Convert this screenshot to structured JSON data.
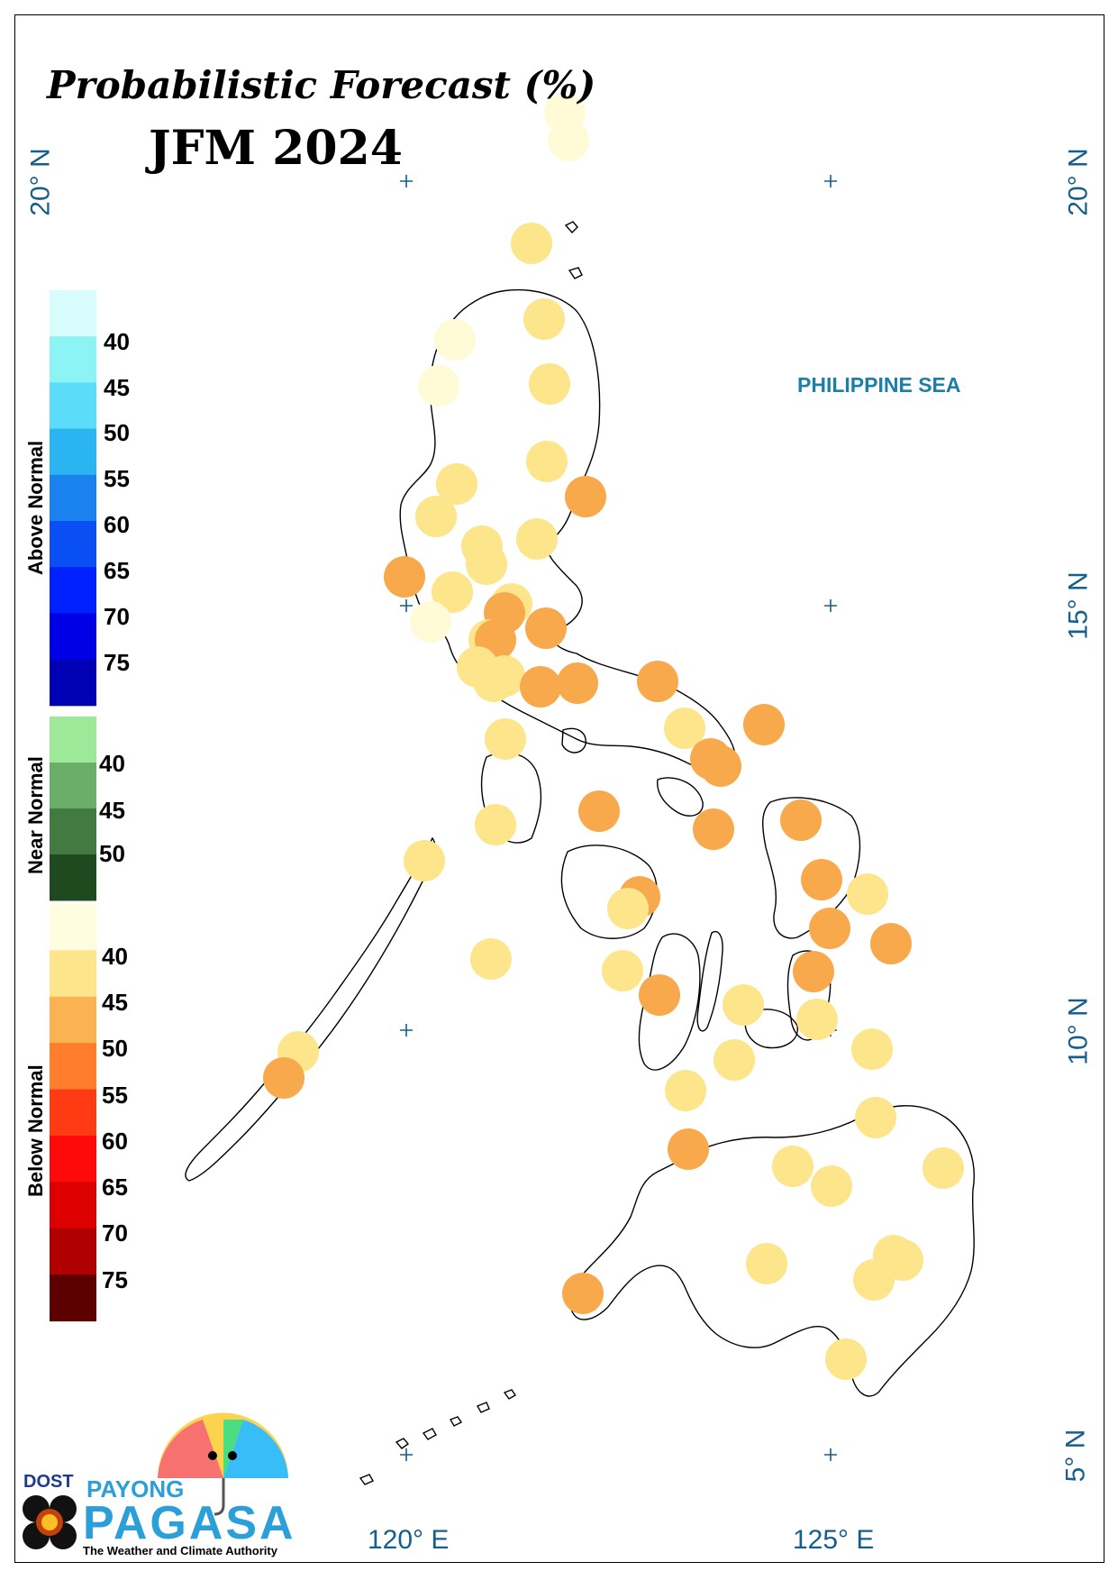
{
  "title": "Probabilistic Forecast (%)",
  "period": "JFM 2024",
  "sea_label": "PHILIPPINE SEA",
  "lat_labels": [
    "20° N",
    "15° N",
    "10° N",
    "5° N"
  ],
  "lon_labels": [
    "120° E",
    "125° E"
  ],
  "legend": {
    "above_normal": {
      "label": "Above Normal",
      "ticks": [
        "40",
        "45",
        "50",
        "55",
        "60",
        "65",
        "70",
        "75"
      ],
      "colors": [
        "#d9fdfd",
        "#8df4f6",
        "#5bdcf8",
        "#2ab5f2",
        "#1a82ee",
        "#0a4ff4",
        "#0020ff",
        "#0000e6",
        "#0000b4"
      ]
    },
    "near_normal": {
      "label": "Near Normal",
      "ticks": [
        "40",
        "45",
        "50"
      ],
      "colors": [
        "#9ee89a",
        "#6aae6a",
        "#427a42",
        "#1f4a1f"
      ]
    },
    "below_normal": {
      "label": "Below Normal",
      "ticks": [
        "40",
        "45",
        "50",
        "55",
        "60",
        "65",
        "70",
        "75"
      ],
      "colors": [
        "#fefde0",
        "#fde58b",
        "#fbb252",
        "#ff7d2c",
        "#ff3b14",
        "#ff0a0a",
        "#dd0000",
        "#b00000",
        "#5c0000"
      ]
    }
  },
  "stations_color_key": {
    "light": "#fefbd6",
    "yellow": "#fde58b",
    "orange": "#f8a94c"
  },
  "logo": {
    "dost": "DOST",
    "payong": "PAYONG",
    "pagasa": "PAGASA",
    "tagline": "The Weather and Climate Authority"
  }
}
